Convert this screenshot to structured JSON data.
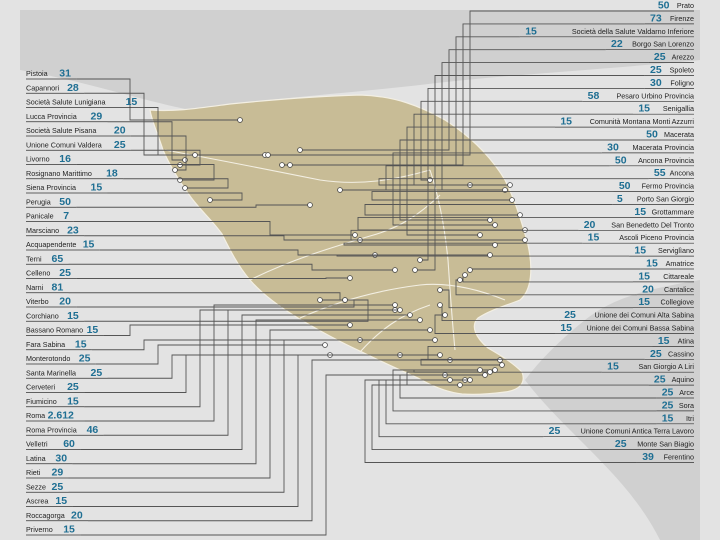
{
  "colors": {
    "sea": "#e3e3e3",
    "land_outside": "#d0d0d0",
    "region": "#c8bc96",
    "border": "#f3efe3",
    "leader": "#555555",
    "number": "#1f6f93",
    "name": "#222222"
  },
  "labels": {
    "left": [
      {
        "name": "Pistoia",
        "value": "31"
      },
      {
        "name": "Capannori",
        "value": "28"
      },
      {
        "name": "Società Salute Lunigiana",
        "value": "15"
      },
      {
        "name": "Lucca Provincia",
        "value": "29"
      },
      {
        "name": "Società Salute Pisana",
        "value": "20"
      },
      {
        "name": "Unione Comuni Valdera",
        "value": "25"
      },
      {
        "name": "Livorno",
        "value": "16"
      },
      {
        "name": "Rosignano Marittimo",
        "value": "18"
      },
      {
        "name": "Siena Provincia",
        "value": "15"
      },
      {
        "name": "Perugia",
        "value": "50"
      },
      {
        "name": "Panicale",
        "value": "7"
      },
      {
        "name": "Marsciano",
        "value": "23"
      },
      {
        "name": "Acquapendente",
        "value": "15"
      },
      {
        "name": "Terni",
        "value": "65"
      },
      {
        "name": "Celleno",
        "value": "25"
      },
      {
        "name": "Narni",
        "value": "81"
      },
      {
        "name": "Viterbo",
        "value": "20"
      },
      {
        "name": "Corchiano",
        "value": "15"
      },
      {
        "name": "Bassano Romano",
        "value": "15"
      },
      {
        "name": "Fara Sabina",
        "value": "15"
      },
      {
        "name": "Monterotondo",
        "value": "25"
      },
      {
        "name": "Santa Marinella",
        "value": "25"
      },
      {
        "name": "Cerveteri",
        "value": "25"
      },
      {
        "name": "Fiumicino",
        "value": "15"
      },
      {
        "name": "Roma",
        "value": "2.612"
      },
      {
        "name": "Roma Provincia",
        "value": "46"
      },
      {
        "name": "Velletri",
        "value": "60"
      },
      {
        "name": "Latina",
        "value": "30"
      },
      {
        "name": "Rieti",
        "value": "29"
      },
      {
        "name": "Sezze",
        "value": "25"
      },
      {
        "name": "Ascrea",
        "value": "15"
      },
      {
        "name": "Roccagorga",
        "value": "20"
      },
      {
        "name": "Priverno",
        "value": "15"
      }
    ],
    "right": [
      {
        "name": "Prato",
        "value": "50"
      },
      {
        "name": "Firenze",
        "value": "73"
      },
      {
        "name": "Società della Salute Valdarno Inferiore",
        "value": "15"
      },
      {
        "name": "Borgo San Lorenzo",
        "value": "22"
      },
      {
        "name": "Arezzo",
        "value": "25"
      },
      {
        "name": "Spoleto",
        "value": "25"
      },
      {
        "name": "Foligno",
        "value": "30"
      },
      {
        "name": "Pesaro Urbino Provincia",
        "value": "58"
      },
      {
        "name": "Senigallia",
        "value": "15"
      },
      {
        "name": "Comunità Montana Monti Azzurri",
        "value": "15"
      },
      {
        "name": "Macerata",
        "value": "50"
      },
      {
        "name": "Macerata Provincia",
        "value": "30"
      },
      {
        "name": "Ancona Provincia",
        "value": "50"
      },
      {
        "name": "Ancona",
        "value": "55"
      },
      {
        "name": "Fermo Provincia",
        "value": "50"
      },
      {
        "name": "Porto San Giorgio",
        "value": "5"
      },
      {
        "name": "Grottammare",
        "value": "15"
      },
      {
        "name": "San Benedetto Del Tronto",
        "value": "20"
      },
      {
        "name": "Ascoli Piceno Provincia",
        "value": "15"
      },
      {
        "name": "Serviglìano",
        "value": "15"
      },
      {
        "name": "Amatrice",
        "value": "15"
      },
      {
        "name": "Cittareale",
        "value": "15"
      },
      {
        "name": "Cantalice",
        "value": "20"
      },
      {
        "name": "Collegiove",
        "value": "15"
      },
      {
        "name": "Unione dei Comuni Alta Sabina",
        "value": "25"
      },
      {
        "name": "Unione dei Comuni Bassa Sabina",
        "value": "15"
      },
      {
        "name": "Atina",
        "value": "15"
      },
      {
        "name": "Cassino",
        "value": "25"
      },
      {
        "name": "San Giorgio A Liri",
        "value": "15"
      },
      {
        "name": "Aquino",
        "value": "25"
      },
      {
        "name": "Arce",
        "value": "25"
      },
      {
        "name": "Sora",
        "value": "25"
      },
      {
        "name": "Itri",
        "value": "15"
      },
      {
        "name": "Unione Comuni Antica Terra Lavoro",
        "value": "25"
      },
      {
        "name": "Monte San Biagio",
        "value": "25"
      },
      {
        "name": "Ferentino",
        "value": "39"
      }
    ]
  }
}
